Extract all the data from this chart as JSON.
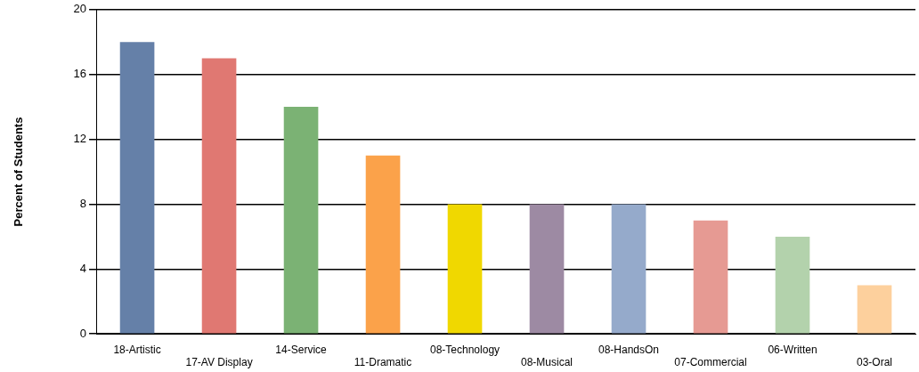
{
  "chart_data": {
    "type": "bar",
    "ylabel": "Percent of Students",
    "categories": [
      "18-Artistic",
      "17-AV Display",
      "14-Service",
      "11-Dramatic",
      "08-Technology",
      "08-Musical",
      "08-HandsOn",
      "07-Commercial",
      "06-Written",
      "03-Oral"
    ],
    "values": [
      18,
      17,
      14,
      11,
      8,
      8,
      8,
      7,
      6,
      3
    ],
    "colors": [
      "#6580a8",
      "#e07872",
      "#7bb274",
      "#fba24a",
      "#f0d800",
      "#9d8aa3",
      "#95aacb",
      "#e69a93",
      "#b3d2ac",
      "#fdd09d"
    ],
    "ylim": [
      0,
      20
    ],
    "yticks": [
      0,
      4,
      8,
      12,
      16,
      20
    ],
    "grid": "y"
  }
}
